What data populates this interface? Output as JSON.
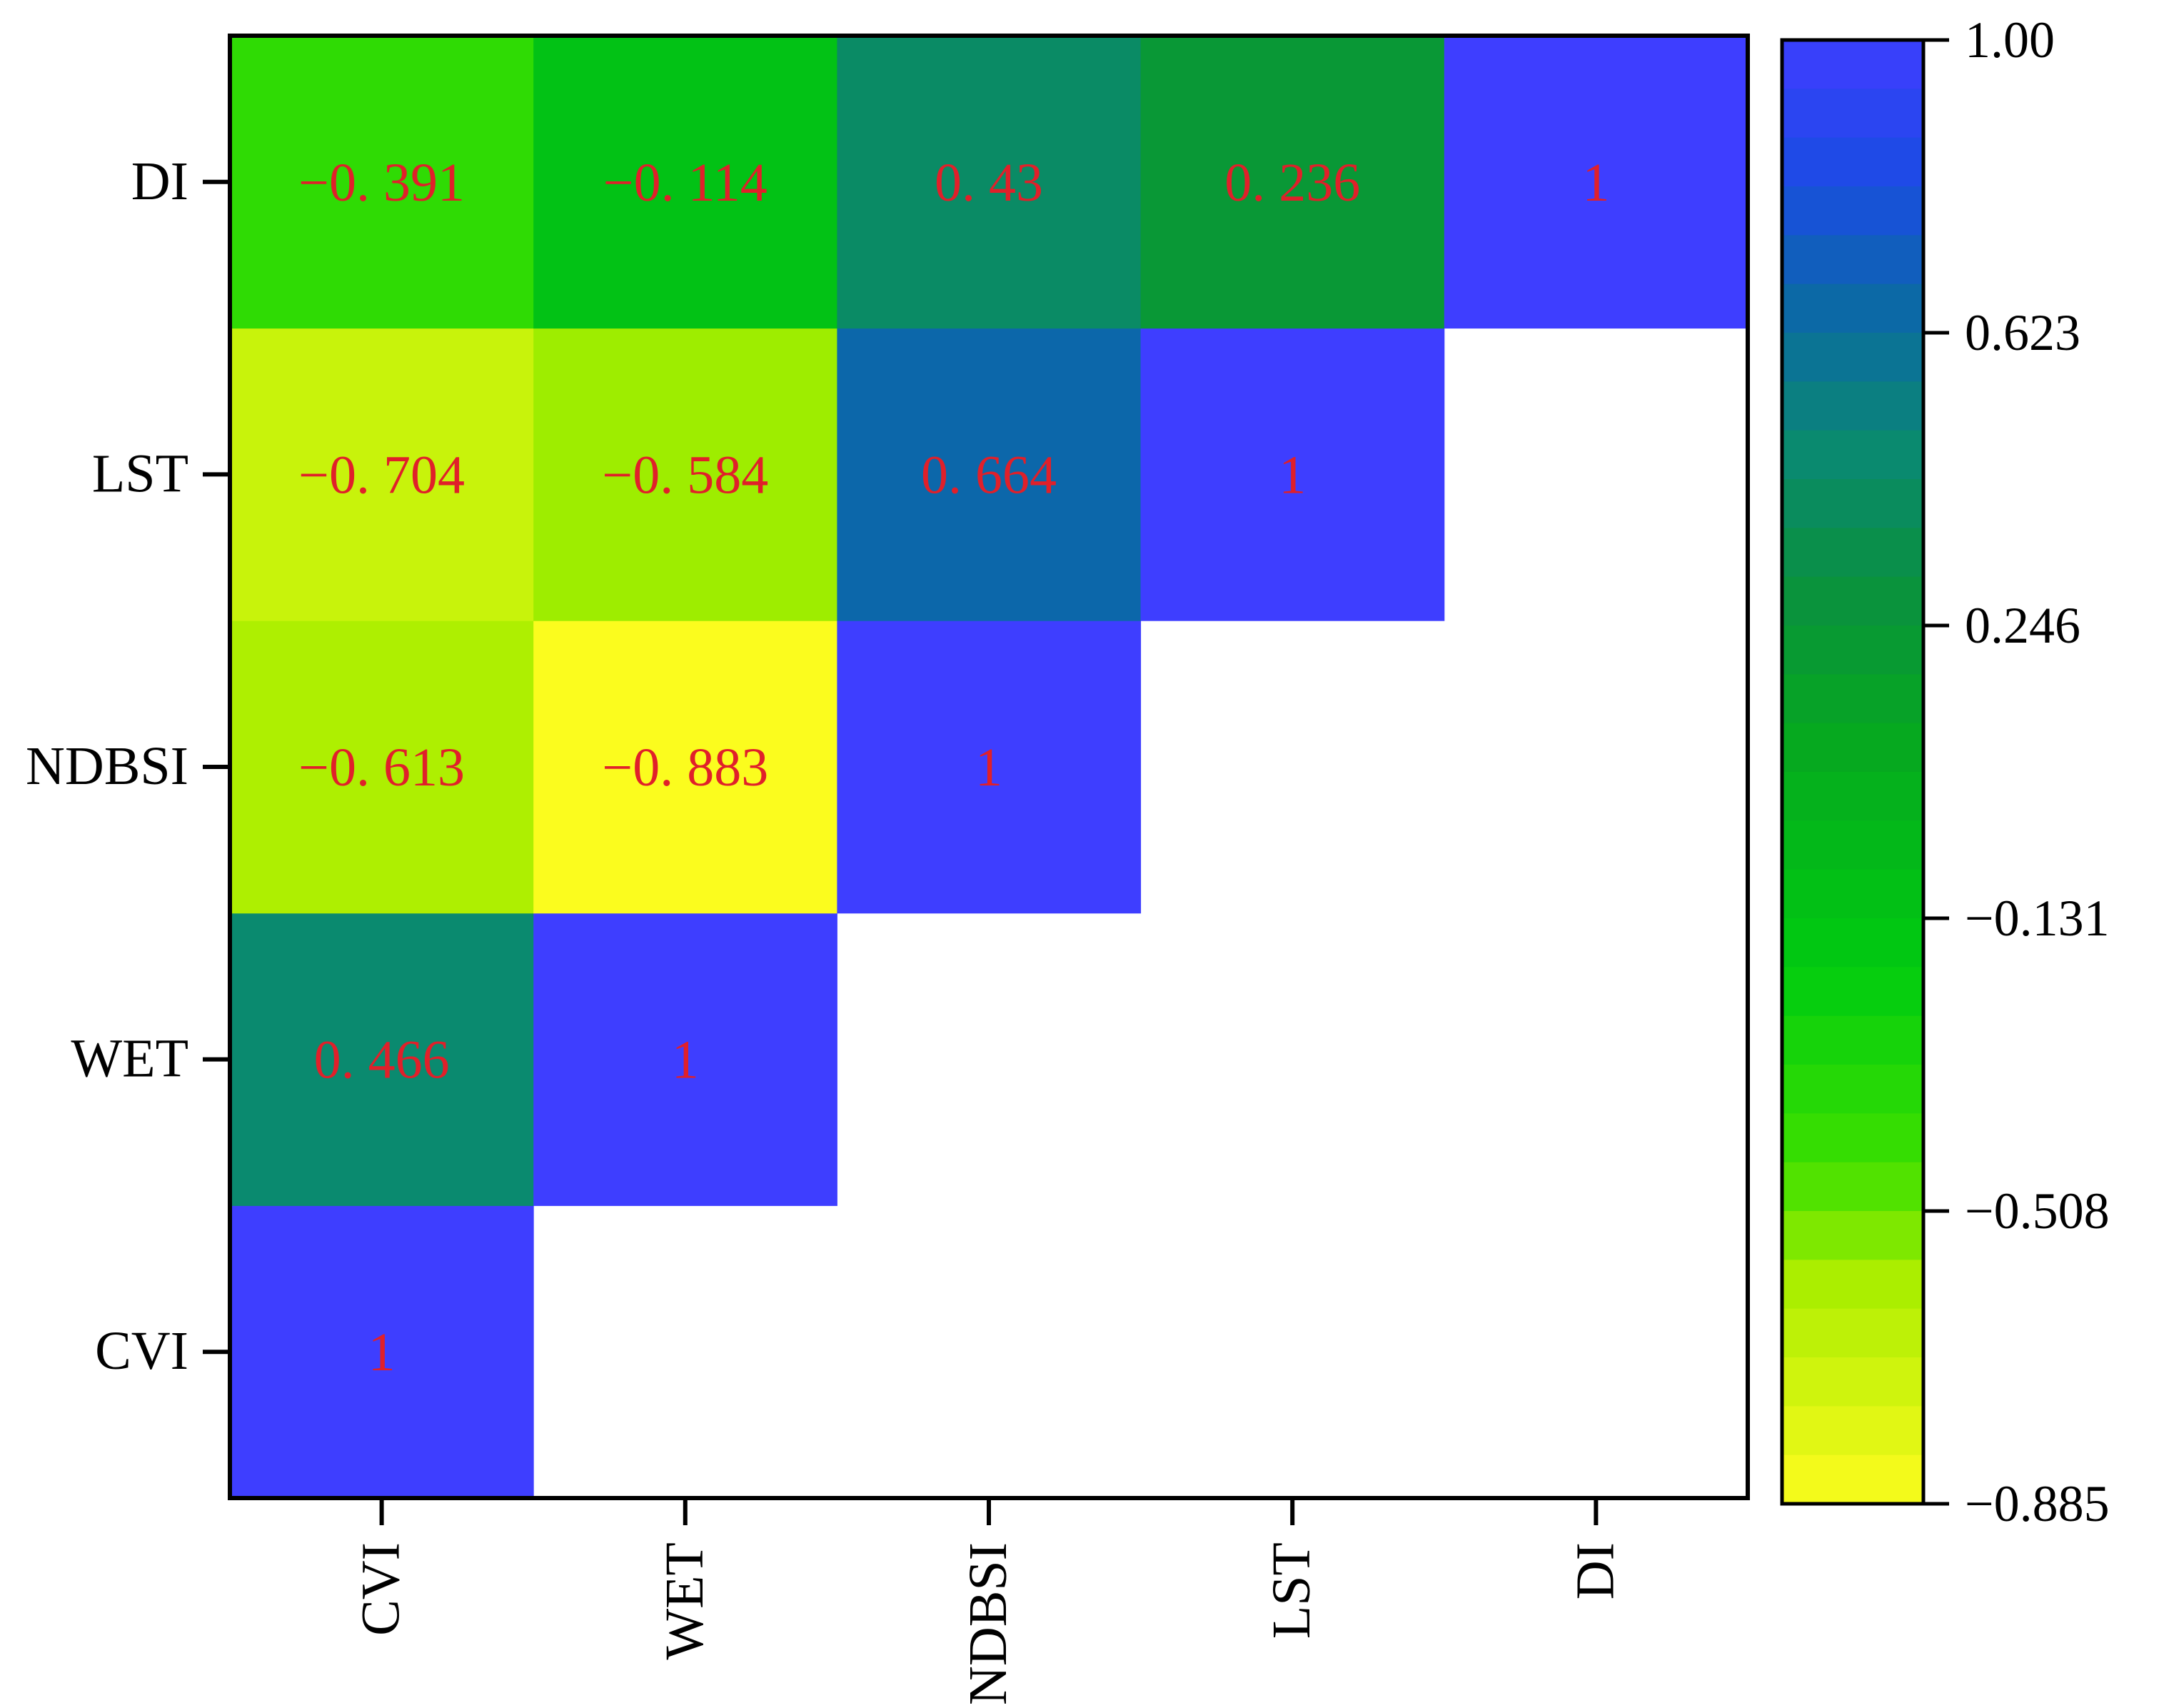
{
  "chart_data": {
    "type": "heatmap",
    "variables": [
      "CVI",
      "WET",
      "NDBSI",
      "LST",
      "DI"
    ],
    "x_tick_labels": [
      "CVI",
      "WET",
      "NDBSI",
      "LST",
      "DI"
    ],
    "y_tick_labels": [
      "DI",
      "LST",
      "NDBSI",
      "WET",
      "CVI"
    ],
    "cells": [
      {
        "row": "CVI",
        "col": "CVI",
        "value": 1,
        "label": "1"
      },
      {
        "row": "WET",
        "col": "CVI",
        "value": 0.466,
        "label": "0. 466"
      },
      {
        "row": "WET",
        "col": "WET",
        "value": 1,
        "label": "1"
      },
      {
        "row": "NDBSI",
        "col": "CVI",
        "value": -0.613,
        "label": "−0. 613"
      },
      {
        "row": "NDBSI",
        "col": "WET",
        "value": -0.883,
        "label": "−0. 883"
      },
      {
        "row": "NDBSI",
        "col": "NDBSI",
        "value": 1,
        "label": "1"
      },
      {
        "row": "LST",
        "col": "CVI",
        "value": -0.704,
        "label": "−0. 704"
      },
      {
        "row": "LST",
        "col": "WET",
        "value": -0.584,
        "label": "−0. 584"
      },
      {
        "row": "LST",
        "col": "NDBSI",
        "value": 0.664,
        "label": "0. 664"
      },
      {
        "row": "LST",
        "col": "LST",
        "value": 1,
        "label": "1"
      },
      {
        "row": "DI",
        "col": "CVI",
        "value": -0.391,
        "label": "−0. 391"
      },
      {
        "row": "DI",
        "col": "WET",
        "value": -0.114,
        "label": "−0. 114"
      },
      {
        "row": "DI",
        "col": "NDBSI",
        "value": 0.43,
        "label": "0. 43"
      },
      {
        "row": "DI",
        "col": "LST",
        "value": 0.236,
        "label": "0. 236"
      },
      {
        "row": "DI",
        "col": "DI",
        "value": 1,
        "label": "1"
      }
    ],
    "colorbar": {
      "min": -0.885,
      "max": 1.0,
      "tick_values": [
        1.0,
        0.623,
        0.246,
        -0.131,
        -0.508,
        -0.885
      ],
      "tick_labels": [
        "1.00",
        "0.623",
        "0.246",
        "−0.131",
        "−0.508",
        "−0.885"
      ],
      "color_stops": [
        {
          "value": -0.885,
          "color": "#fcfc1e"
        },
        {
          "value": -0.6,
          "color": "#aaee00"
        },
        {
          "value": -0.45,
          "color": "#3ee000"
        },
        {
          "value": -0.2,
          "color": "#00cc10"
        },
        {
          "value": 0.1,
          "color": "#06a820"
        },
        {
          "value": 0.3,
          "color": "#0a9040"
        },
        {
          "value": 0.47,
          "color": "#0a8a70"
        },
        {
          "value": 0.66,
          "color": "#0c68a8"
        },
        {
          "value": 0.82,
          "color": "#1a4ce4"
        },
        {
          "value": 1.0,
          "color": "#3e3eff"
        }
      ],
      "bands": 30
    },
    "title": "",
    "xlabel": "",
    "ylabel": ""
  }
}
